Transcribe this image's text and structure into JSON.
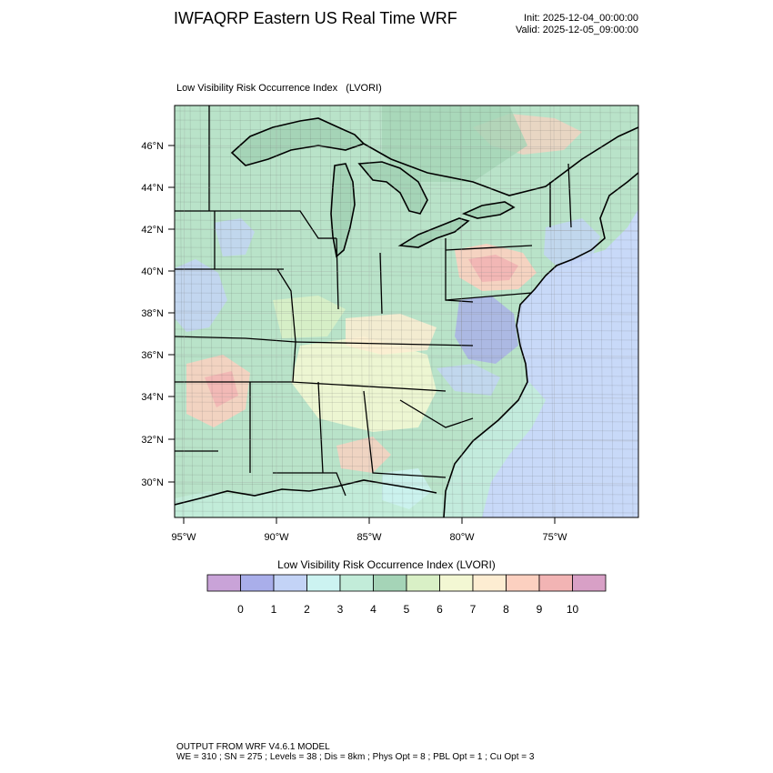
{
  "header": {
    "title": "IWFAQRP Eastern US Real Time WRF",
    "init": "Init: 2025-12-04_00:00:00",
    "valid": "Valid: 2025-12-05_09:00:00"
  },
  "plot": {
    "title": "Low Visibility Risk Occurrence Index   (LVORI)",
    "lat_labels": [
      "46°N",
      "44°N",
      "42°N",
      "40°N",
      "38°N",
      "36°N",
      "34°N",
      "32°N",
      "30°N"
    ],
    "lon_labels": [
      "95°W",
      "90°W",
      "85°W",
      "80°W",
      "75°W"
    ]
  },
  "legend": {
    "title": "Low Visibility Risk Occurrence Index  (LVORI)",
    "labels": [
      "0",
      "1",
      "2",
      "3",
      "4",
      "5",
      "6",
      "7",
      "8",
      "9",
      "10"
    ],
    "colors": [
      "#c9a3d8",
      "#a9aeea",
      "#c3d3f6",
      "#ccf3f1",
      "#c2ecd9",
      "#a5d4b7",
      "#d9f0c6",
      "#f3f7d3",
      "#fdedd2",
      "#fcd0c0",
      "#f2b4b4",
      "#d8a0c6"
    ]
  },
  "footer": {
    "line1": "OUTPUT FROM WRF V4.6.1 MODEL",
    "line2": "WE = 310 ; SN = 275 ; Levels = 38 ; Dis = 8km ; Phys Opt = 8 ; PBL Opt = 1 ; Cu Opt = 3"
  }
}
